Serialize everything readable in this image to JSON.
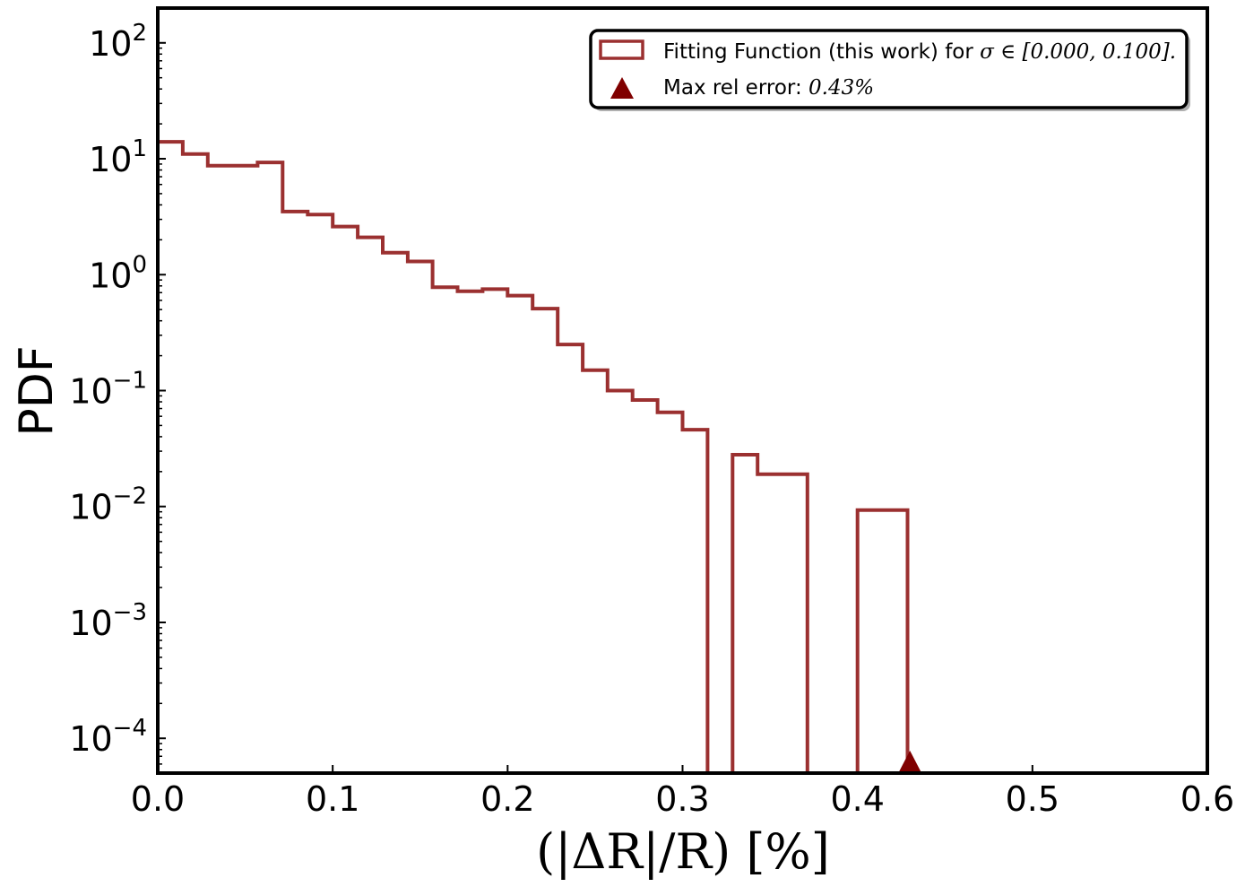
{
  "chart_data": {
    "type": "histogram",
    "xlabel": "(|ΔR|/R) [%]",
    "ylabel": "PDF",
    "xlim": [
      0.0,
      0.6
    ],
    "ylim_log10": [
      -4.3,
      2.3
    ],
    "y_scale": "log",
    "x_ticks": [
      "0.0",
      "0.1",
      "0.2",
      "0.3",
      "0.4",
      "0.5",
      "0.6"
    ],
    "y_ticks": [
      {
        "base": "10",
        "exp": "2"
      },
      {
        "base": "10",
        "exp": "1"
      },
      {
        "base": "10",
        "exp": "0"
      },
      {
        "base": "10",
        "exp": "−1"
      },
      {
        "base": "10",
        "exp": "−2"
      },
      {
        "base": "10",
        "exp": "−3"
      },
      {
        "base": "10",
        "exp": "−4"
      }
    ],
    "bin_edges": [
      0.0,
      0.0143,
      0.0286,
      0.0429,
      0.0571,
      0.0714,
      0.0857,
      0.1,
      0.1143,
      0.1286,
      0.1429,
      0.1571,
      0.1714,
      0.1857,
      0.2,
      0.2143,
      0.2286,
      0.2429,
      0.2571,
      0.2714,
      0.2857,
      0.3,
      0.3143,
      0.3286,
      0.3429,
      0.3571,
      0.3714,
      0.3857,
      0.4,
      0.4143,
      0.4286
    ],
    "values": [
      14.0,
      11.0,
      8.7,
      8.7,
      9.3,
      3.5,
      3.3,
      2.6,
      2.1,
      1.55,
      1.3,
      0.78,
      0.72,
      0.75,
      0.66,
      0.51,
      0.25,
      0.15,
      0.1,
      0.083,
      0.065,
      0.046,
      0,
      0.028,
      0.019,
      0.019,
      0,
      0,
      0.0093,
      0.0093
    ],
    "series": [
      {
        "name": "Fitting Function (this work) for ",
        "math": "σ ∈ [0.000, 0.100].",
        "color": "#9b3030"
      }
    ],
    "marker": {
      "label": "Max rel error: ",
      "math": "0.43%",
      "x": 0.43,
      "color": "#800000"
    },
    "legend_position": "top-right"
  }
}
